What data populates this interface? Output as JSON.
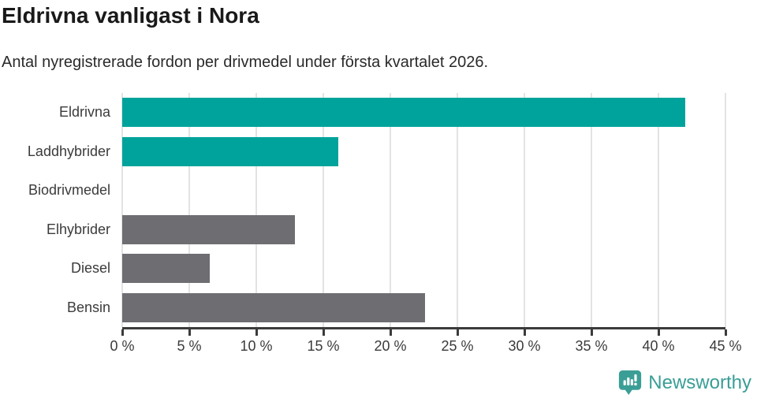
{
  "header": {
    "title": "Eldrivna vanligast i Nora",
    "subtitle": "Antal nyregistrerade fordon per drivmedel under första kvartalet 2026."
  },
  "chart_data": {
    "type": "bar",
    "orientation": "horizontal",
    "title": "Eldrivna vanligast i Nora",
    "subtitle": "Antal nyregistrerade fordon per drivmedel under första kvartalet 2026.",
    "categories": [
      "Eldrivna",
      "Laddhybrider",
      "Biodrivmedel",
      "Elhybrider",
      "Diesel",
      "Bensin"
    ],
    "values": [
      42,
      16.1,
      0,
      12.9,
      6.5,
      22.6
    ],
    "unit": "%",
    "bar_colors": [
      "#00a39b",
      "#00a39b",
      "#6d6d72",
      "#6d6d72",
      "#6d6d72",
      "#6d6d72"
    ],
    "xlabel": "",
    "ylabel": "",
    "xlim": [
      0,
      45
    ],
    "x_ticks": [
      0,
      5,
      10,
      15,
      20,
      25,
      30,
      35,
      40,
      45
    ],
    "x_tick_labels": [
      "0 %",
      "5 %",
      "10 %",
      "15 %",
      "20 %",
      "25 %",
      "30 %",
      "35 %",
      "40 %",
      "45 %"
    ],
    "grid": true,
    "legend": "none"
  },
  "footer": {
    "brand": "Newsworthy"
  },
  "colors": {
    "accent_teal": "#00a39b",
    "bar_gray": "#6d6d72",
    "logo_teal": "#3a9e96",
    "axis": "#3b3b3b",
    "gridline": "#e3e3e3",
    "title_text": "#191919"
  }
}
